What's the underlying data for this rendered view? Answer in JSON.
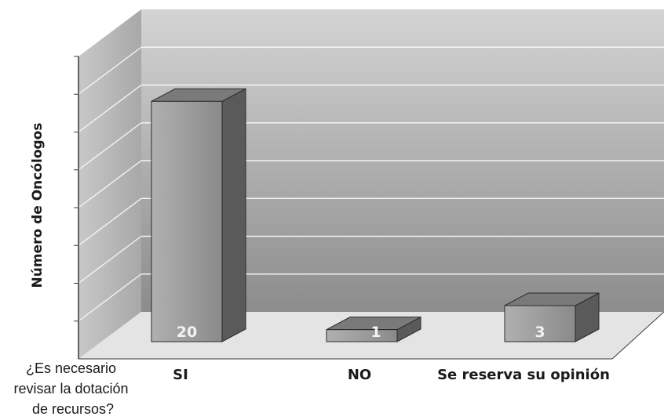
{
  "chart_data": {
    "type": "bar",
    "categories": [
      "SI",
      "NO",
      "Se reserva su opinión"
    ],
    "values": [
      20,
      1,
      3
    ],
    "xlabel": "¿Es necesario revisar la dotación de recursos?",
    "xlabel_lines": [
      "¿Es necesario",
      "revisar la dotación",
      "de recursos?"
    ],
    "ylabel": "Número de Oncólogos",
    "ylim": [
      0,
      24
    ],
    "grid": true,
    "legend": "none",
    "three_d": true,
    "colors": {
      "bar_front": "#9a9a9a",
      "bar_side": "#5a5a5a",
      "bar_top": "#7a7a7a",
      "back_wall_top": "#d2d2d2",
      "back_wall_bottom": "#8f8f8f",
      "floor": "#e4e4e4",
      "gridline": "#f4f4f4",
      "text": "#1a1a1a"
    }
  }
}
